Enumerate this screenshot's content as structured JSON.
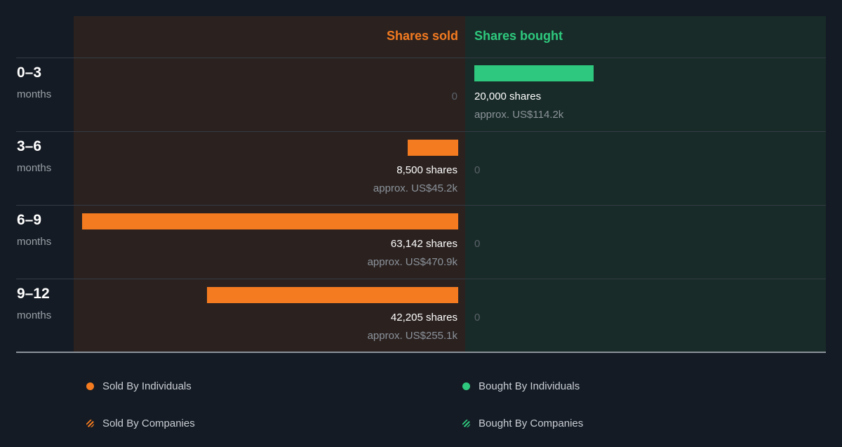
{
  "chart_data": {
    "type": "bar",
    "headers": {
      "sold": "Shares sold",
      "bought": "Shares bought"
    },
    "categories": [
      {
        "period": "0–3",
        "unit": "months"
      },
      {
        "period": "3–6",
        "unit": "months"
      },
      {
        "period": "6–9",
        "unit": "months"
      },
      {
        "period": "9–12",
        "unit": "months"
      }
    ],
    "series": [
      {
        "name": "Shares sold",
        "values": [
          0,
          8500,
          63142,
          42205
        ],
        "labels": [
          "0",
          "8,500 shares",
          "63,142 shares",
          "42,205 shares"
        ],
        "approx": [
          "",
          "approx. US$45.2k",
          "approx. US$470.9k",
          "approx. US$255.1k"
        ]
      },
      {
        "name": "Shares bought",
        "values": [
          20000,
          0,
          0,
          0
        ],
        "labels": [
          "20,000 shares",
          "0",
          "0",
          "0"
        ],
        "approx": [
          "approx. US$114.2k",
          "",
          "",
          ""
        ]
      }
    ],
    "legend": [
      {
        "label": "Sold By Individuals",
        "color": "#f47b20",
        "style": "solid"
      },
      {
        "label": "Bought By Individuals",
        "color": "#2ec97e",
        "style": "solid"
      },
      {
        "label": "Sold By Companies",
        "color": "#f47b20",
        "style": "hatched"
      },
      {
        "label": "Bought By Companies",
        "color": "#2ec97e",
        "style": "hatched"
      }
    ],
    "colors": {
      "sold": "#f47b20",
      "bought": "#2ec97e"
    }
  }
}
